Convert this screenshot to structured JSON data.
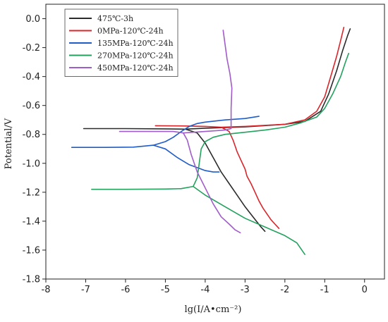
{
  "chart_data": {
    "type": "line",
    "xlabel": "lg(I/A•cm⁻²)",
    "ylabel": "Potential/V",
    "xlim": [
      -8,
      0.5
    ],
    "ylim": [
      -1.8,
      0.1
    ],
    "xticks": [
      -8,
      -7,
      -6,
      -5,
      -4,
      -3,
      -2,
      -1,
      0
    ],
    "yticks": [
      0.0,
      -0.2,
      -0.4,
      -0.6,
      -0.8,
      -1.0,
      -1.2,
      -1.4,
      -1.6,
      -1.8
    ],
    "xtick_labels": [
      "-8",
      "-7",
      "-6",
      "-5",
      "-4",
      "-3",
      "-2",
      "-1",
      "0"
    ],
    "ytick_labels": [
      "0.0",
      "-0.2",
      "-0.4",
      "-0.6",
      "-0.8",
      "-1.0",
      "-1.2",
      "-1.4",
      "-1.6",
      "-1.8"
    ],
    "grid": false,
    "legend_position": "top-left",
    "series": [
      {
        "name": "475℃-3h",
        "color": "#2b2b2b",
        "points": [
          [
            -7.05,
            -0.76
          ],
          [
            -6.0,
            -0.76
          ],
          [
            -5.0,
            -0.762
          ],
          [
            -4.5,
            -0.764
          ],
          [
            -4.2,
            -0.79
          ],
          [
            -4.0,
            -0.86
          ],
          [
            -3.8,
            -0.96
          ],
          [
            -3.6,
            -1.06
          ],
          [
            -3.4,
            -1.14
          ],
          [
            -3.2,
            -1.22
          ],
          [
            -3.0,
            -1.3
          ],
          [
            -2.8,
            -1.37
          ],
          [
            -2.6,
            -1.44
          ],
          [
            -2.5,
            -1.47
          ],
          null,
          [
            -4.5,
            -0.764
          ],
          [
            -4.0,
            -0.757
          ],
          [
            -3.0,
            -0.748
          ],
          [
            -2.0,
            -0.73
          ],
          [
            -1.5,
            -0.71
          ],
          [
            -1.1,
            -0.64
          ],
          [
            -0.9,
            -0.52
          ],
          [
            -0.7,
            -0.36
          ],
          [
            -0.55,
            -0.22
          ],
          [
            -0.43,
            -0.12
          ],
          [
            -0.36,
            -0.07
          ]
        ]
      },
      {
        "name": "0MPa-120℃-24h",
        "color": "#d9262b",
        "points": [
          [
            -5.25,
            -0.74
          ],
          [
            -4.5,
            -0.742
          ],
          [
            -4.0,
            -0.745
          ],
          [
            -3.6,
            -0.75
          ],
          [
            -3.4,
            -0.78
          ],
          [
            -3.3,
            -0.84
          ],
          [
            -3.2,
            -0.92
          ],
          [
            -3.1,
            -0.98
          ],
          [
            -3.0,
            -1.04
          ],
          [
            -2.95,
            -1.09
          ],
          [
            -2.85,
            -1.14
          ],
          [
            -2.75,
            -1.2
          ],
          [
            -2.65,
            -1.26
          ],
          [
            -2.55,
            -1.31
          ],
          [
            -2.45,
            -1.35
          ],
          [
            -2.35,
            -1.39
          ],
          [
            -2.25,
            -1.42
          ],
          [
            -2.15,
            -1.45
          ],
          null,
          [
            -3.6,
            -0.75
          ],
          [
            -3.0,
            -0.745
          ],
          [
            -2.0,
            -0.73
          ],
          [
            -1.5,
            -0.7
          ],
          [
            -1.2,
            -0.64
          ],
          [
            -1.0,
            -0.54
          ],
          [
            -0.85,
            -0.4
          ],
          [
            -0.7,
            -0.26
          ],
          [
            -0.6,
            -0.15
          ],
          [
            -0.52,
            -0.06
          ]
        ]
      },
      {
        "name": "135MPa-120℃-24h",
        "color": "#1f5cc8",
        "points": [
          [
            -7.35,
            -0.89
          ],
          [
            -6.5,
            -0.89
          ],
          [
            -5.8,
            -0.888
          ],
          [
            -5.3,
            -0.875
          ],
          [
            -5.0,
            -0.85
          ],
          [
            -4.8,
            -0.82
          ],
          [
            -4.6,
            -0.78
          ],
          [
            -4.4,
            -0.745
          ],
          [
            -4.2,
            -0.725
          ],
          [
            -4.0,
            -0.715
          ],
          [
            -3.5,
            -0.7
          ],
          [
            -3.0,
            -0.69
          ],
          [
            -2.65,
            -0.675
          ],
          null,
          [
            -5.3,
            -0.875
          ],
          [
            -5.0,
            -0.9
          ],
          [
            -4.7,
            -0.96
          ],
          [
            -4.4,
            -1.01
          ],
          [
            -4.2,
            -1.03
          ],
          [
            -4.0,
            -1.05
          ],
          [
            -3.8,
            -1.06
          ],
          [
            -3.65,
            -1.06
          ]
        ]
      },
      {
        "name": "270MPa-120℃-24h",
        "color": "#23a15e",
        "points": [
          [
            -6.85,
            -1.18
          ],
          [
            -6.0,
            -1.18
          ],
          [
            -5.0,
            -1.178
          ],
          [
            -4.6,
            -1.175
          ],
          [
            -4.3,
            -1.16
          ],
          [
            -4.2,
            -1.1
          ],
          [
            -4.15,
            -1.0
          ],
          [
            -4.1,
            -0.9
          ],
          [
            -4.0,
            -0.85
          ],
          [
            -3.8,
            -0.82
          ],
          [
            -3.5,
            -0.8
          ],
          [
            -3.0,
            -0.785
          ],
          [
            -2.5,
            -0.77
          ],
          [
            -2.0,
            -0.75
          ],
          [
            -1.6,
            -0.72
          ],
          [
            -1.2,
            -0.68
          ],
          [
            -1.0,
            -0.62
          ],
          [
            -0.8,
            -0.52
          ],
          [
            -0.6,
            -0.4
          ],
          [
            -0.48,
            -0.3
          ],
          [
            -0.4,
            -0.24
          ],
          null,
          [
            -4.3,
            -1.16
          ],
          [
            -4.0,
            -1.22
          ],
          [
            -3.5,
            -1.3
          ],
          [
            -3.0,
            -1.38
          ],
          [
            -2.5,
            -1.44
          ],
          [
            -2.0,
            -1.5
          ],
          [
            -1.7,
            -1.55
          ],
          [
            -1.5,
            -1.63
          ]
        ]
      },
      {
        "name": "450MPa-120℃-24h",
        "color": "#a05cc8",
        "points": [
          [
            -6.15,
            -0.78
          ],
          [
            -5.5,
            -0.78
          ],
          [
            -4.8,
            -0.78
          ],
          [
            -4.55,
            -0.79
          ],
          [
            -4.45,
            -0.84
          ],
          [
            -4.35,
            -0.94
          ],
          [
            -4.2,
            -1.06
          ],
          [
            -4.0,
            -1.17
          ],
          [
            -3.8,
            -1.28
          ],
          [
            -3.6,
            -1.37
          ],
          [
            -3.4,
            -1.42
          ],
          [
            -3.25,
            -1.46
          ],
          [
            -3.12,
            -1.48
          ],
          null,
          [
            -4.55,
            -0.79
          ],
          [
            -4.0,
            -0.78
          ],
          [
            -3.5,
            -0.77
          ],
          [
            -3.35,
            -0.76
          ],
          [
            -3.35,
            -0.62
          ],
          [
            -3.33,
            -0.48
          ],
          [
            -3.38,
            -0.38
          ],
          [
            -3.45,
            -0.28
          ],
          [
            -3.5,
            -0.18
          ],
          [
            -3.55,
            -0.08
          ]
        ]
      }
    ]
  }
}
